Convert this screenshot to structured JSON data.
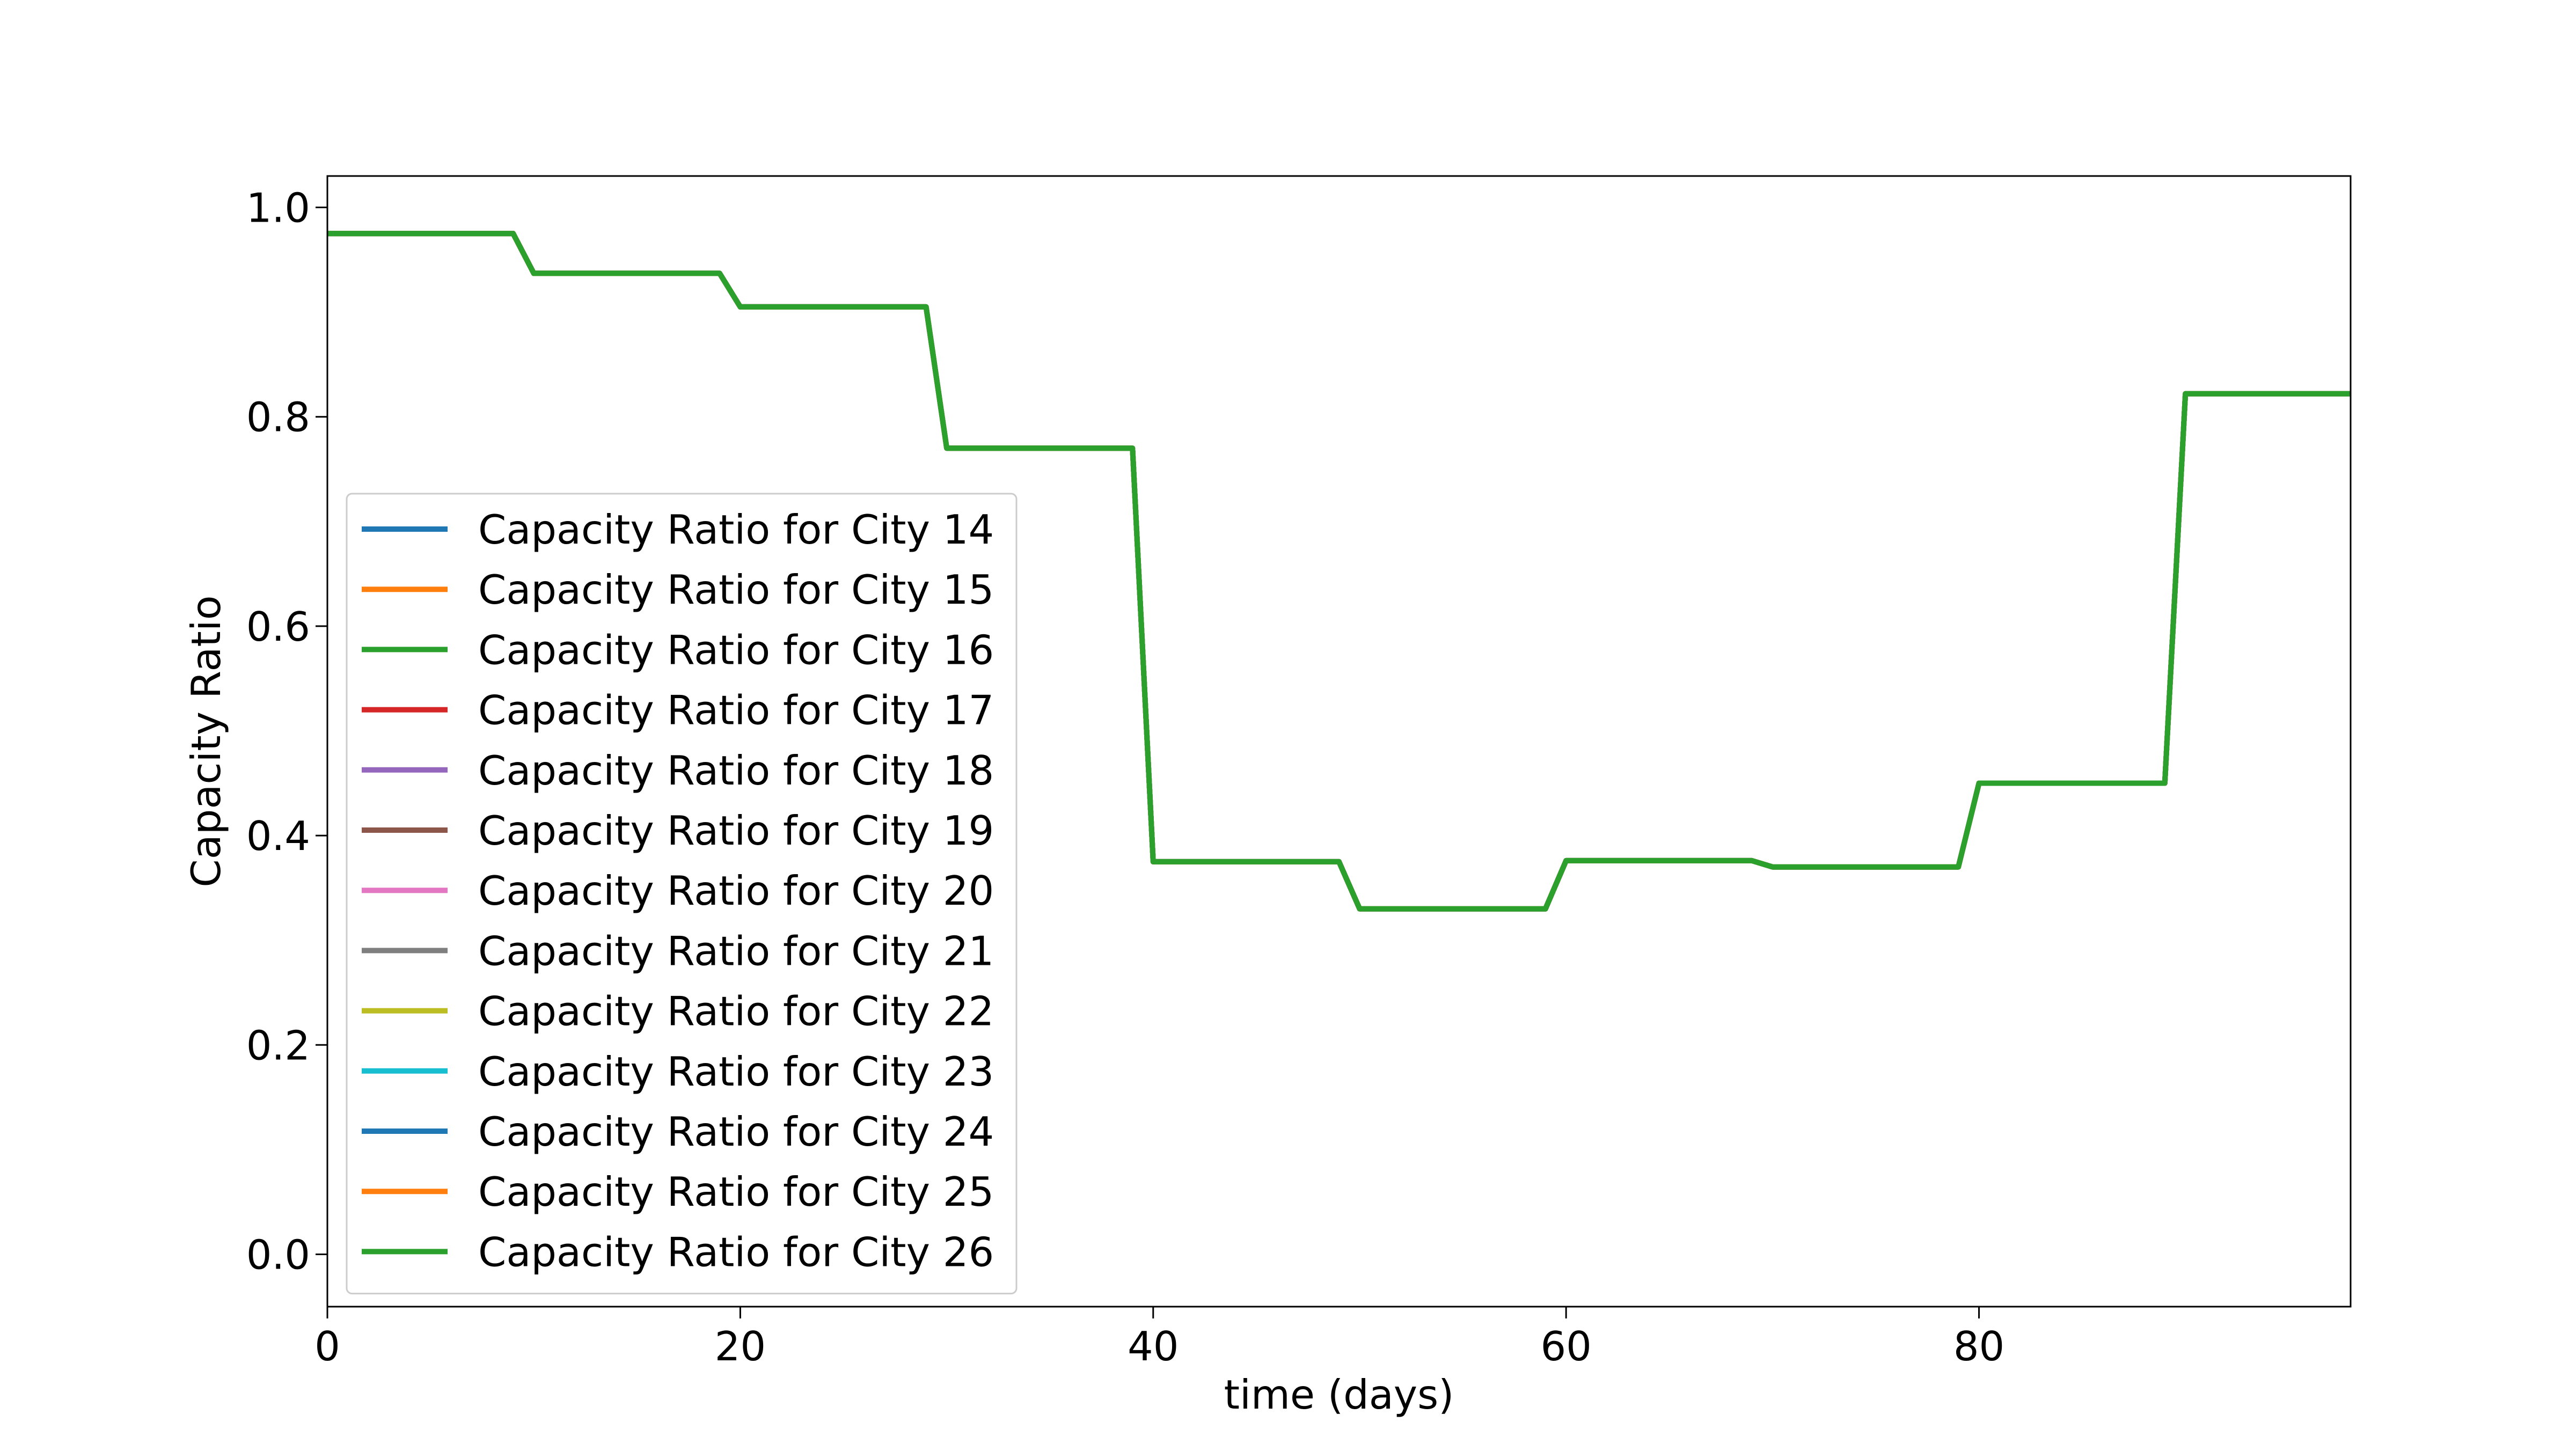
{
  "chart_data": {
    "type": "line",
    "title": "",
    "xlabel": "time (days)",
    "ylabel": "Capacity Ratio",
    "xlim": [
      0,
      98
    ],
    "ylim": [
      -0.05,
      1.03
    ],
    "xticks": [
      0,
      20,
      40,
      60,
      80
    ],
    "xtick_labels": [
      "0",
      "20",
      "40",
      "60",
      "80"
    ],
    "yticks": [
      0.0,
      0.2,
      0.4,
      0.6,
      0.8,
      1.0
    ],
    "ytick_labels": [
      "0.0",
      "0.2",
      "0.4",
      "0.6",
      "0.8",
      "1.0"
    ],
    "grid": false,
    "legend_position": "lower-left",
    "x": [
      0,
      9,
      10,
      19,
      20,
      29,
      30,
      39,
      40,
      49,
      50,
      59,
      60,
      69,
      70,
      79,
      80,
      89,
      90,
      98
    ],
    "series": [
      {
        "name": "Capacity Ratio for City 14",
        "color": "#1f77b4",
        "values": [
          0.975,
          0.975,
          0.937,
          0.937,
          0.905,
          0.905,
          0.77,
          0.77,
          0.375,
          0.375,
          0.33,
          0.33,
          0.376,
          0.376,
          0.37,
          0.37,
          0.45,
          0.45,
          0.822,
          0.822
        ]
      },
      {
        "name": "Capacity Ratio for City 15",
        "color": "#ff7f0e",
        "values": [
          0.975,
          0.975,
          0.937,
          0.937,
          0.905,
          0.905,
          0.77,
          0.77,
          0.375,
          0.375,
          0.33,
          0.33,
          0.376,
          0.376,
          0.37,
          0.37,
          0.45,
          0.45,
          0.822,
          0.822
        ]
      },
      {
        "name": "Capacity Ratio for City 16",
        "color": "#2ca02c",
        "values": [
          0.975,
          0.975,
          0.937,
          0.937,
          0.905,
          0.905,
          0.77,
          0.77,
          0.375,
          0.375,
          0.33,
          0.33,
          0.376,
          0.376,
          0.37,
          0.37,
          0.45,
          0.45,
          0.822,
          0.822
        ]
      },
      {
        "name": "Capacity Ratio for City 17",
        "color": "#d62728",
        "values": [
          0.975,
          0.975,
          0.937,
          0.937,
          0.905,
          0.905,
          0.77,
          0.77,
          0.375,
          0.375,
          0.33,
          0.33,
          0.376,
          0.376,
          0.37,
          0.37,
          0.45,
          0.45,
          0.822,
          0.822
        ]
      },
      {
        "name": "Capacity Ratio for City 18",
        "color": "#9467bd",
        "values": [
          0.975,
          0.975,
          0.937,
          0.937,
          0.905,
          0.905,
          0.77,
          0.77,
          0.375,
          0.375,
          0.33,
          0.33,
          0.376,
          0.376,
          0.37,
          0.37,
          0.45,
          0.45,
          0.822,
          0.822
        ]
      },
      {
        "name": "Capacity Ratio for City 19",
        "color": "#8c564b",
        "values": [
          0.975,
          0.975,
          0.937,
          0.937,
          0.905,
          0.905,
          0.77,
          0.77,
          0.375,
          0.375,
          0.33,
          0.33,
          0.376,
          0.376,
          0.37,
          0.37,
          0.45,
          0.45,
          0.822,
          0.822
        ]
      },
      {
        "name": "Capacity Ratio for City 20",
        "color": "#e377c2",
        "values": [
          0.975,
          0.975,
          0.937,
          0.937,
          0.905,
          0.905,
          0.77,
          0.77,
          0.375,
          0.375,
          0.33,
          0.33,
          0.376,
          0.376,
          0.37,
          0.37,
          0.45,
          0.45,
          0.822,
          0.822
        ]
      },
      {
        "name": "Capacity Ratio for City 21",
        "color": "#7f7f7f",
        "values": [
          0.975,
          0.975,
          0.937,
          0.937,
          0.905,
          0.905,
          0.77,
          0.77,
          0.375,
          0.375,
          0.33,
          0.33,
          0.376,
          0.376,
          0.37,
          0.37,
          0.45,
          0.45,
          0.822,
          0.822
        ]
      },
      {
        "name": "Capacity Ratio for City 22",
        "color": "#bcbd22",
        "values": [
          0.975,
          0.975,
          0.937,
          0.937,
          0.905,
          0.905,
          0.77,
          0.77,
          0.375,
          0.375,
          0.33,
          0.33,
          0.376,
          0.376,
          0.37,
          0.37,
          0.45,
          0.45,
          0.822,
          0.822
        ]
      },
      {
        "name": "Capacity Ratio for City 23",
        "color": "#17becf",
        "values": [
          0.975,
          0.975,
          0.937,
          0.937,
          0.905,
          0.905,
          0.77,
          0.77,
          0.375,
          0.375,
          0.33,
          0.33,
          0.376,
          0.376,
          0.37,
          0.37,
          0.45,
          0.45,
          0.822,
          0.822
        ]
      },
      {
        "name": "Capacity Ratio for City 24",
        "color": "#1f77b4",
        "values": [
          0.975,
          0.975,
          0.937,
          0.937,
          0.905,
          0.905,
          0.77,
          0.77,
          0.375,
          0.375,
          0.33,
          0.33,
          0.376,
          0.376,
          0.37,
          0.37,
          0.45,
          0.45,
          0.822,
          0.822
        ]
      },
      {
        "name": "Capacity Ratio for City 25",
        "color": "#ff7f0e",
        "values": [
          0.975,
          0.975,
          0.937,
          0.937,
          0.905,
          0.905,
          0.77,
          0.77,
          0.375,
          0.375,
          0.33,
          0.33,
          0.376,
          0.376,
          0.37,
          0.37,
          0.45,
          0.45,
          0.822,
          0.822
        ]
      },
      {
        "name": "Capacity Ratio for City 26",
        "color": "#2ca02c",
        "values": [
          0.975,
          0.975,
          0.937,
          0.937,
          0.905,
          0.905,
          0.77,
          0.77,
          0.375,
          0.375,
          0.33,
          0.33,
          0.376,
          0.376,
          0.37,
          0.37,
          0.45,
          0.45,
          0.822,
          0.822
        ]
      }
    ]
  }
}
